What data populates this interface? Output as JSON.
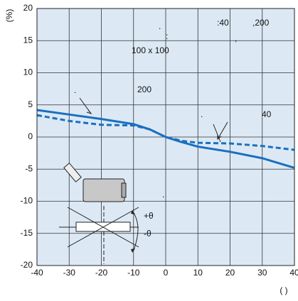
{
  "chart_data": {
    "type": "line",
    "y_label": "(%)",
    "x_label": "(   )",
    "x": [
      -40,
      -30,
      -20,
      -10,
      -5,
      0,
      5,
      10,
      20,
      30,
      40
    ],
    "series": [
      {
        "color": "#1a6fc0",
        "dash": false,
        "values": [
          4.2,
          3.5,
          2.8,
          2.0,
          1.2,
          0,
          -0.8,
          -1.5,
          -2.3,
          -3.3,
          -4.8
        ]
      },
      {
        "color": "#1a6fc0",
        "dash": true,
        "values": [
          3.4,
          2.5,
          1.9,
          1.8,
          1.2,
          0,
          -0.6,
          -0.9,
          -1.0,
          -1.4,
          -2.0
        ]
      }
    ],
    "xlim": [
      -40,
      40
    ],
    "ylim": [
      -20,
      20
    ],
    "xticks": [
      -40,
      -30,
      -20,
      -10,
      0,
      10,
      20,
      30,
      40
    ],
    "yticks": [
      -20,
      -15,
      -10,
      -5,
      0,
      5,
      10,
      15,
      20
    ],
    "grid": true,
    "background": "#dce9f5",
    "annotations": [
      ":40",
      ",200",
      ".",
      ":",
      "100 x 100",
      "200",
      ".",
      "40",
      ".",
      ",",
      ".",
      "+θ",
      "-θ"
    ]
  }
}
